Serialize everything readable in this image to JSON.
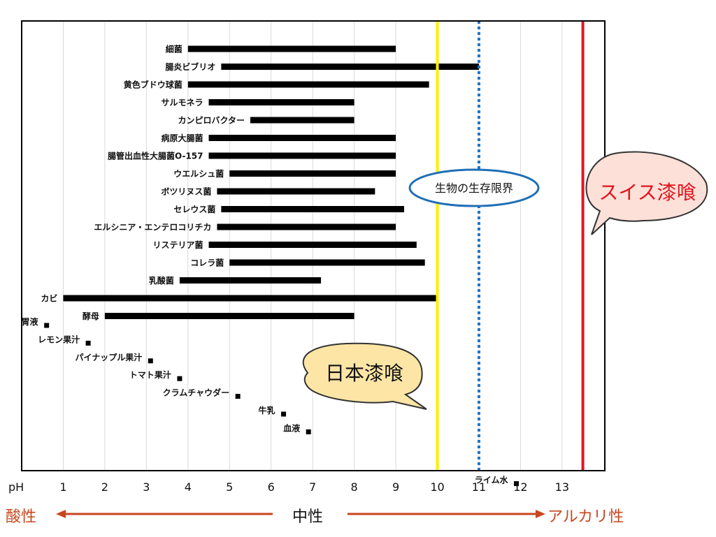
{
  "chart_data": {
    "type": "range-bar",
    "xlabel": "pH",
    "xlim": [
      0,
      14
    ],
    "x_ticks": [
      1,
      2,
      3,
      4,
      5,
      6,
      7,
      8,
      9,
      10,
      11,
      12,
      13
    ],
    "grid": true,
    "ranges": [
      {
        "label": "細菌",
        "min": 4,
        "max": 9
      },
      {
        "label": "腸炎ビブリオ",
        "min": 4.8,
        "max": 11
      },
      {
        "label": "黄色ブドウ球菌",
        "min": 4,
        "max": 9.8
      },
      {
        "label": "サルモネラ",
        "min": 4.5,
        "max": 8
      },
      {
        "label": "カンピロバクター",
        "min": 5.5,
        "max": 8
      },
      {
        "label": "病原大腸菌",
        "min": 4.5,
        "max": 9
      },
      {
        "label": "腸管出血性大腸菌O-157",
        "min": 4.5,
        "max": 9
      },
      {
        "label": "ウエルシュ菌",
        "min": 5,
        "max": 9
      },
      {
        "label": "ボツリヌス菌",
        "min": 4.7,
        "max": 8.5
      },
      {
        "label": "セレウス菌",
        "min": 4.8,
        "max": 9.2
      },
      {
        "label": "エルシニア・エンテロコリチカ",
        "min": 4.7,
        "max": 9
      },
      {
        "label": "リステリア菌",
        "min": 4.5,
        "max": 9.5
      },
      {
        "label": "コレラ菌",
        "min": 5,
        "max": 9.7
      },
      {
        "label": "乳酸菌",
        "min": 3.8,
        "max": 7.2
      },
      {
        "label": "カビ",
        "min": 1,
        "max": 10
      },
      {
        "label": "酵母",
        "min": 2,
        "max": 8
      }
    ],
    "points": [
      {
        "label": "胃液",
        "value": 0.6
      },
      {
        "label": "レモン果汁",
        "value": 1.6
      },
      {
        "label": "パイナップル果汁",
        "value": 3.1
      },
      {
        "label": "トマト果汁",
        "value": 3.8
      },
      {
        "label": "クラムチャウダー",
        "value": 5.2
      },
      {
        "label": "牛乳",
        "value": 6.3
      },
      {
        "label": "血液",
        "value": 6.9
      },
      {
        "label": "ライム水",
        "value": 11.9
      }
    ],
    "reference_lines": [
      {
        "name": "yellow-line",
        "value": 10,
        "color": "#ffee00",
        "style": "solid"
      },
      {
        "name": "blue-line",
        "value": 11,
        "color": "#1f74c4",
        "style": "dotted"
      },
      {
        "name": "red-line",
        "value": 13.5,
        "color": "#e0141e",
        "style": "solid"
      }
    ],
    "annotations": [
      {
        "name": "survival-limit",
        "text": "生物の生存限界",
        "shape": "ellipse",
        "fill": "#ffffff",
        "border": "#1f6fb5",
        "text_color": "#111111"
      },
      {
        "name": "swiss-lacquer",
        "text": "スイス漆喰",
        "shape": "speech-bubble",
        "fill": "#fde0d8",
        "border": "#333333",
        "text_color": "#e0141e"
      },
      {
        "name": "japan-lacquer",
        "text": "日本漆喰",
        "shape": "speech-bubble",
        "fill": "#fde5a6",
        "border": "#333333",
        "text_color": "#111111"
      }
    ]
  },
  "footer": {
    "acid": "酸性",
    "neutral": "中性",
    "alkali": "アルカリ性"
  },
  "colors": {
    "bar": "#000000",
    "grid": "#d9d9d9",
    "axis": "#000000",
    "arrow": "#c8461e"
  }
}
